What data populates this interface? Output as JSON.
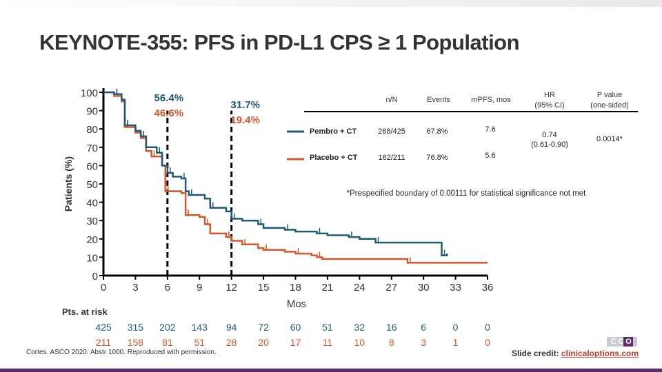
{
  "title": "KEYNOTE-355: PFS in PD-L1 CPS ≥ 1 Population",
  "chart_data": {
    "type": "line",
    "title": "",
    "xlabel": "Mos",
    "ylabel": "Patients (%)",
    "xlim": [
      0,
      36
    ],
    "ylim": [
      0,
      100
    ],
    "xticks": [
      0,
      3,
      6,
      9,
      12,
      15,
      18,
      21,
      24,
      27,
      30,
      33,
      36
    ],
    "yticks": [
      0,
      10,
      20,
      30,
      40,
      50,
      60,
      70,
      80,
      90,
      100
    ],
    "colors": {
      "pembro": "#1d5a73",
      "placebo": "#d4562a"
    },
    "series": [
      {
        "name": "Pembro + CT",
        "x": [
          0,
          1,
          1.7,
          2,
          3,
          3.5,
          4,
          5,
          5.5,
          6,
          6.5,
          7.3,
          7.7,
          8,
          9.5,
          10,
          11.5,
          12,
          13,
          14.5,
          15,
          17,
          18,
          20,
          21,
          23,
          24,
          25.5,
          31.6,
          31.7,
          32.2
        ],
        "y": [
          100,
          99,
          96,
          82,
          79,
          76,
          70,
          67,
          60,
          56,
          54,
          53,
          46,
          44,
          42,
          37,
          35,
          31,
          30,
          28,
          26,
          25,
          24,
          23,
          22,
          21,
          20,
          18,
          18,
          11,
          12
        ]
      },
      {
        "name": "Placebo + CT",
        "x": [
          0,
          1,
          1.7,
          2,
          3,
          3.5,
          4,
          4.5,
          5.5,
          5.8,
          7.3,
          7.7,
          9,
          9.5,
          10,
          11.5,
          12,
          13,
          14.5,
          15,
          17,
          18,
          19.5,
          20,
          20.5,
          28.5,
          36
        ],
        "y": [
          100,
          98,
          95,
          81,
          78,
          75,
          68,
          65,
          60,
          46,
          45,
          33,
          32,
          28,
          23,
          21,
          19,
          17,
          15,
          14,
          13,
          12,
          11,
          10,
          9,
          7,
          7
        ]
      }
    ],
    "annotations": [
      {
        "x": 6,
        "pembro": "56.4%",
        "placebo": "46.6%"
      },
      {
        "x": 12,
        "pembro": "31.7%",
        "placebo": "19.4%"
      }
    ],
    "table": {
      "headers": [
        "n/N",
        "Events",
        "mPFS, mos",
        "HR (95% CI)",
        "P value (one-sided)"
      ],
      "hr_line1": "HR",
      "hr_line2": "(95% CI)",
      "p_line1": "P value",
      "p_line2": "(one-sided)",
      "rows": [
        {
          "arm": "Pembro + CT",
          "nN": "288/425",
          "events": "67.8%",
          "mpfs": "7.6"
        },
        {
          "arm": "Placebo + CT",
          "nN": "162/211",
          "events": "76.8%",
          "mpfs": "5.6"
        }
      ],
      "hr": "0.74",
      "hr_ci": "(0.61-0.90)",
      "p": "0.0014*"
    },
    "footnote": "*Prespecified boundary of 0.00111 for statistical significance not met",
    "at_risk_label": "Pts. at risk",
    "at_risk": {
      "pembro": [
        425,
        315,
        202,
        143,
        94,
        72,
        60,
        51,
        32,
        16,
        6,
        0,
        0
      ],
      "placebo": [
        211,
        158,
        81,
        51,
        28,
        20,
        17,
        11,
        10,
        8,
        3,
        1,
        0
      ]
    }
  },
  "citation": "Cortes. ASCO 2020. Abstr 1000. Reproduced with permission.",
  "credit_label": "Slide credit: ",
  "credit_link": "clinicaloptions.com",
  "logo": "CCO"
}
